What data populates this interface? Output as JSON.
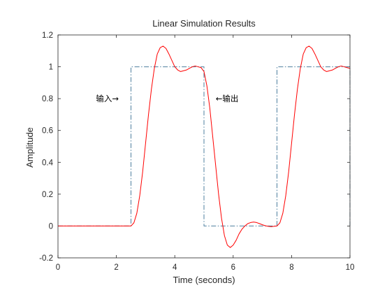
{
  "chart_data": {
    "type": "line",
    "title": "Linear Simulation Results",
    "xlabel": "Time (seconds)",
    "ylabel": "Amplitude",
    "xlim": [
      0,
      10
    ],
    "ylim": [
      -0.2,
      1.2
    ],
    "grid": false,
    "x_ticks": [
      0,
      2,
      4,
      6,
      8,
      10
    ],
    "x_tick_labels": [
      "0",
      "2",
      "4",
      "6",
      "8",
      "10"
    ],
    "y_ticks": [
      -0.2,
      0,
      0.2,
      0.4,
      0.6,
      0.8,
      1,
      1.2
    ],
    "y_tick_labels": [
      "-0.2",
      "0",
      "0.2",
      "0.4",
      "0.6",
      "0.8",
      "1",
      "1.2"
    ],
    "series": [
      {
        "color": "#4e7f9f",
        "style": "dash-dot",
        "x": [
          0,
          2.5,
          2.5,
          5,
          5,
          7.5,
          7.5,
          10,
          10
        ],
        "y": [
          0,
          0,
          1,
          1,
          0,
          0,
          1,
          1,
          0
        ]
      },
      {
        "color": "#ff0000",
        "style": "solid",
        "x": [
          0,
          2.5,
          2.6,
          2.7,
          2.8,
          2.9,
          3.0,
          3.1,
          3.2,
          3.3,
          3.4,
          3.5,
          3.6,
          3.7,
          3.8,
          3.9,
          4.0,
          4.1,
          4.2,
          4.3,
          4.4,
          4.5,
          4.6,
          4.7,
          4.8,
          4.9,
          5.0,
          5.1,
          5.2,
          5.3,
          5.4,
          5.5,
          5.6,
          5.7,
          5.8,
          5.9,
          6.0,
          6.1,
          6.2,
          6.3,
          6.4,
          6.5,
          6.6,
          6.7,
          6.8,
          6.9,
          7.0,
          7.1,
          7.2,
          7.3,
          7.4,
          7.5,
          7.6,
          7.7,
          7.8,
          7.9,
          8.0,
          8.1,
          8.2,
          8.3,
          8.4,
          8.5,
          8.6,
          8.7,
          8.8,
          8.9,
          9.0,
          9.1,
          9.2,
          9.3,
          9.4,
          9.5,
          9.6,
          9.7,
          9.8,
          9.9,
          10.0
        ],
        "y": [
          0,
          0,
          0.02,
          0.08,
          0.19,
          0.34,
          0.52,
          0.7,
          0.86,
          0.99,
          1.08,
          1.12,
          1.13,
          1.115,
          1.08,
          1.04,
          1.0,
          0.98,
          0.97,
          0.975,
          0.98,
          0.99,
          1.0,
          1.005,
          1.0,
          0.995,
          0.97,
          0.88,
          0.74,
          0.56,
          0.38,
          0.2,
          0.05,
          -0.06,
          -0.12,
          -0.135,
          -0.12,
          -0.09,
          -0.05,
          -0.02,
          0.0,
          0.015,
          0.022,
          0.025,
          0.022,
          0.015,
          0.008,
          0.002,
          -0.002,
          -0.004,
          -0.002,
          0.0,
          0.02,
          0.08,
          0.19,
          0.34,
          0.52,
          0.7,
          0.86,
          0.99,
          1.08,
          1.12,
          1.13,
          1.115,
          1.08,
          1.04,
          1.0,
          0.98,
          0.97,
          0.975,
          0.98,
          0.99,
          1.0,
          1.005,
          1.0,
          0.995,
          0.99
        ]
      }
    ],
    "annotations": [
      {
        "text": "输入→",
        "x": 1.3,
        "y": 0.8,
        "anchor": "start"
      },
      {
        "text": "←输出",
        "x": 5.4,
        "y": 0.8,
        "anchor": "start"
      }
    ]
  }
}
